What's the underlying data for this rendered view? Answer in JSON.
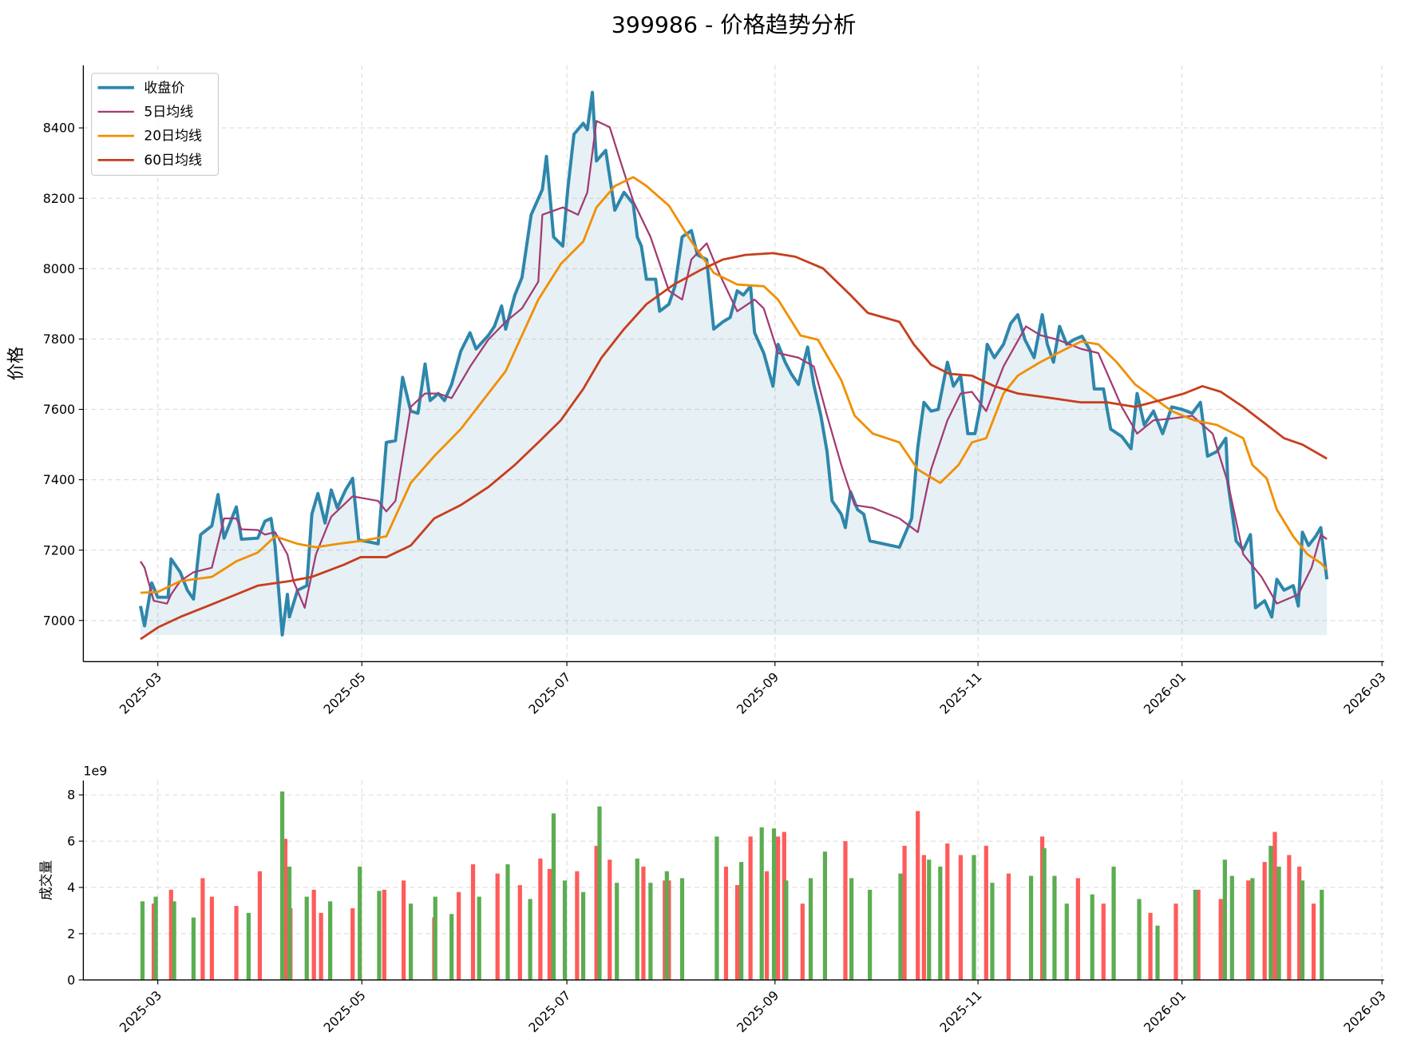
{
  "chart_data": [
    {
      "type": "line",
      "title": "399986 - 价格趋势分析",
      "ylabel": "价格",
      "xlim": [
        2.27,
        15.02
      ],
      "ylim": [
        6883,
        8578
      ],
      "xticks": [
        {
          "value": 3,
          "label": "2025-03"
        },
        {
          "value": 5,
          "label": "2025-05"
        },
        {
          "value": 7.01,
          "label": "2025-07"
        },
        {
          "value": 9.05,
          "label": "2025-09"
        },
        {
          "value": 11.04,
          "label": "2025-11"
        },
        {
          "value": 13.04,
          "label": "2026-01"
        },
        {
          "value": 15,
          "label": "2026-03"
        }
      ],
      "yticks": [
        7000,
        7200,
        7400,
        7600,
        7800,
        8000,
        8200,
        8400
      ],
      "grid": true,
      "legend": "upper left",
      "series": [
        {
          "name": "收盘价",
          "color": "#2e86ab",
          "width": 3.5,
          "fill": true,
          "x": [
            2.83,
            2.87,
            2.94,
            3.0,
            3.1,
            3.13,
            3.22,
            3.29,
            3.35,
            3.42,
            3.53,
            3.59,
            3.65,
            3.77,
            3.82,
            3.98,
            4.05,
            4.11,
            4.15,
            4.22,
            4.27,
            4.29,
            4.37,
            4.46,
            4.51,
            4.57,
            4.64,
            4.7,
            4.76,
            4.84,
            4.91,
            4.97,
            5.16,
            5.24,
            5.33,
            5.4,
            5.48,
            5.55,
            5.62,
            5.67,
            5.75,
            5.81,
            5.88,
            5.97,
            6.06,
            6.12,
            6.24,
            6.3,
            6.37,
            6.41,
            6.5,
            6.57,
            6.66,
            6.77,
            6.81,
            6.88,
            6.97,
            7.02,
            7.08,
            7.17,
            7.21,
            7.26,
            7.3,
            7.39,
            7.48,
            7.57,
            7.66,
            7.7,
            7.74,
            7.79,
            7.88,
            7.92,
            8.01,
            8.07,
            8.14,
            8.23,
            8.29,
            8.38,
            8.45,
            8.54,
            8.61,
            8.68,
            8.74,
            8.81,
            8.85,
            8.94,
            9.03,
            9.08,
            9.15,
            9.21,
            9.28,
            9.37,
            9.43,
            9.5,
            9.56,
            9.61,
            9.7,
            9.74,
            9.79,
            9.86,
            9.92,
            9.98,
            10.27,
            10.39,
            10.45,
            10.51,
            10.58,
            10.65,
            10.74,
            10.8,
            10.87,
            10.94,
            11.01,
            11.07,
            11.13,
            11.2,
            11.29,
            11.36,
            11.43,
            11.5,
            11.59,
            11.67,
            11.72,
            11.78,
            11.84,
            11.91,
            11.98,
            12.06,
            12.14,
            12.18,
            12.27,
            12.34,
            12.45,
            12.54,
            12.6,
            12.67,
            12.76,
            12.85,
            12.94,
            13.04,
            13.14,
            13.22,
            13.29,
            13.38,
            13.47,
            13.49,
            13.57,
            13.64,
            13.71,
            13.76,
            13.85,
            13.92,
            13.97,
            14.04,
            14.13,
            14.18,
            14.22,
            14.28,
            14.35,
            14.4,
            14.46
          ],
          "values": [
            7041,
            6985,
            7107,
            7066,
            7066,
            7175,
            7137,
            7086,
            7061,
            7244,
            7269,
            7358,
            7234,
            7323,
            7231,
            7234,
            7282,
            7290,
            7213,
            6959,
            7074,
            7010,
            7086,
            7099,
            7302,
            7361,
            7277,
            7371,
            7320,
            7371,
            7404,
            7229,
            7218,
            7506,
            7511,
            7691,
            7595,
            7589,
            7729,
            7625,
            7645,
            7625,
            7671,
            7765,
            7818,
            7772,
            7810,
            7836,
            7894,
            7828,
            7925,
            7975,
            8153,
            8225,
            8319,
            8090,
            8064,
            8230,
            8382,
            8413,
            8395,
            8501,
            8306,
            8336,
            8166,
            8217,
            8184,
            8090,
            8064,
            7970,
            7970,
            7879,
            7899,
            7950,
            8090,
            8108,
            8039,
            8026,
            7828,
            7849,
            7861,
            7937,
            7925,
            7950,
            7818,
            7760,
            7666,
            7785,
            7734,
            7701,
            7671,
            7777,
            7671,
            7582,
            7480,
            7340,
            7302,
            7264,
            7366,
            7315,
            7302,
            7226,
            7208,
            7290,
            7493,
            7620,
            7595,
            7600,
            7734,
            7666,
            7696,
            7531,
            7531,
            7620,
            7785,
            7747,
            7785,
            7844,
            7869,
            7798,
            7747,
            7869,
            7785,
            7734,
            7836,
            7785,
            7798,
            7808,
            7767,
            7658,
            7658,
            7544,
            7523,
            7488,
            7645,
            7556,
            7595,
            7531,
            7607,
            7600,
            7589,
            7620,
            7467,
            7480,
            7518,
            7391,
            7226,
            7201,
            7244,
            7036,
            7056,
            7010,
            7117,
            7086,
            7099,
            7041,
            7251,
            7213,
            7239,
            7264,
            7117
          ]
        },
        {
          "name": "5日均线",
          "color": "#a23b72",
          "width": 2,
          "x": [
            2.83,
            2.87,
            2.96,
            3.09,
            3.13,
            3.22,
            3.35,
            3.53,
            3.65,
            3.77,
            3.82,
            3.98,
            4.05,
            4.15,
            4.27,
            4.33,
            4.44,
            4.55,
            4.7,
            4.91,
            5.16,
            5.24,
            5.33,
            5.48,
            5.62,
            5.75,
            5.88,
            6.06,
            6.24,
            6.41,
            6.57,
            6.73,
            6.77,
            6.97,
            7.12,
            7.21,
            7.3,
            7.43,
            7.52,
            7.66,
            7.83,
            8.01,
            8.14,
            8.23,
            8.38,
            8.5,
            8.68,
            8.85,
            8.94,
            9.08,
            9.28,
            9.43,
            9.56,
            9.7,
            9.83,
            10.01,
            10.27,
            10.45,
            10.58,
            10.74,
            10.87,
            10.98,
            11.12,
            11.29,
            11.51,
            11.65,
            11.82,
            12.05,
            12.22,
            12.45,
            12.6,
            12.76,
            12.94,
            13.14,
            13.34,
            13.49,
            13.64,
            13.82,
            13.97,
            14.18,
            14.31,
            14.4,
            14.46
          ],
          "values": [
            7168,
            7150,
            7056,
            7048,
            7074,
            7112,
            7137,
            7150,
            7290,
            7290,
            7259,
            7257,
            7244,
            7251,
            7188,
            7112,
            7036,
            7188,
            7295,
            7353,
            7340,
            7310,
            7340,
            7607,
            7645,
            7645,
            7632,
            7721,
            7798,
            7849,
            7887,
            7963,
            8153,
            8174,
            8153,
            8217,
            8420,
            8402,
            8319,
            8192,
            8090,
            7937,
            7912,
            8026,
            8072,
            7988,
            7879,
            7912,
            7887,
            7760,
            7747,
            7722,
            7582,
            7442,
            7328,
            7320,
            7290,
            7251,
            7429,
            7569,
            7645,
            7650,
            7595,
            7722,
            7836,
            7811,
            7798,
            7772,
            7760,
            7607,
            7531,
            7569,
            7574,
            7582,
            7531,
            7391,
            7188,
            7124,
            7048,
            7074,
            7150,
            7244,
            7231
          ]
        },
        {
          "name": "20日均线",
          "color": "#f18f01",
          "width": 2.5,
          "x": [
            2.83,
            3.0,
            3.22,
            3.53,
            3.77,
            3.98,
            4.15,
            4.37,
            4.55,
            4.77,
            4.99,
            5.24,
            5.48,
            5.71,
            5.97,
            6.24,
            6.41,
            6.73,
            6.95,
            7.17,
            7.3,
            7.48,
            7.66,
            7.79,
            8.01,
            8.23,
            8.45,
            8.68,
            8.94,
            9.08,
            9.3,
            9.47,
            9.7,
            9.83,
            10.01,
            10.27,
            10.45,
            10.67,
            10.85,
            10.98,
            11.12,
            11.29,
            11.43,
            11.65,
            11.87,
            12.05,
            12.22,
            12.4,
            12.58,
            12.76,
            12.94,
            13.16,
            13.38,
            13.64,
            13.73,
            13.87,
            13.97,
            14.13,
            14.27,
            14.4,
            14.46
          ],
          "values": [
            7079,
            7081,
            7112,
            7124,
            7168,
            7193,
            7239,
            7218,
            7208,
            7218,
            7226,
            7239,
            7391,
            7467,
            7544,
            7645,
            7709,
            7912,
            8013,
            8077,
            8174,
            8235,
            8260,
            8235,
            8179,
            8077,
            7988,
            7955,
            7950,
            7912,
            7810,
            7798,
            7683,
            7582,
            7531,
            7506,
            7429,
            7391,
            7442,
            7506,
            7518,
            7645,
            7696,
            7734,
            7767,
            7793,
            7785,
            7734,
            7671,
            7633,
            7595,
            7569,
            7556,
            7518,
            7442,
            7404,
            7315,
            7239,
            7188,
            7163,
            7145
          ]
        },
        {
          "name": "60日均线",
          "color": "#c73e1d",
          "width": 2.5,
          "x": [
            2.83,
            3.0,
            3.22,
            3.53,
            3.77,
            3.98,
            4.29,
            4.51,
            4.82,
            4.99,
            5.24,
            5.48,
            5.71,
            5.97,
            6.24,
            6.5,
            6.73,
            6.95,
            7.17,
            7.35,
            7.57,
            7.79,
            8.06,
            8.32,
            8.54,
            8.76,
            9.03,
            9.25,
            9.52,
            9.79,
            9.96,
            10.27,
            10.41,
            10.58,
            10.76,
            10.98,
            11.2,
            11.43,
            11.74,
            12.05,
            12.31,
            12.58,
            12.84,
            13.06,
            13.24,
            13.42,
            13.64,
            13.87,
            14.04,
            14.22,
            14.46
          ],
          "values": [
            6947,
            6980,
            7010,
            7046,
            7074,
            7099,
            7112,
            7124,
            7158,
            7180,
            7180,
            7213,
            7290,
            7328,
            7379,
            7442,
            7506,
            7569,
            7658,
            7747,
            7828,
            7899,
            7955,
            7996,
            8026,
            8039,
            8044,
            8034,
            8001,
            7925,
            7874,
            7849,
            7785,
            7727,
            7701,
            7696,
            7666,
            7645,
            7633,
            7620,
            7620,
            7607,
            7627,
            7645,
            7666,
            7650,
            7607,
            7556,
            7518,
            7500,
            7460
          ]
        }
      ]
    },
    {
      "type": "bar",
      "ylabel": "成交量",
      "offset_label": "1e9",
      "xlim": [
        2.27,
        15.02
      ],
      "ylim": [
        0,
        8.62
      ],
      "xticks": [
        {
          "value": 3,
          "label": "2025-03"
        },
        {
          "value": 5,
          "label": "2025-05"
        },
        {
          "value": 7.01,
          "label": "2025-07"
        },
        {
          "value": 9.05,
          "label": "2025-09"
        },
        {
          "value": 11.04,
          "label": "2025-11"
        },
        {
          "value": 13.04,
          "label": "2026-01"
        },
        {
          "value": 15,
          "label": "2026-03"
        }
      ],
      "yticks": [
        0,
        2,
        4,
        6,
        8
      ],
      "grid": true,
      "series": [
        {
          "color": "#ff5b5b",
          "x": [
            2.96,
            3.13,
            3.44,
            3.53,
            3.77,
            4.0,
            4.25,
            4.3,
            4.53,
            4.6,
            4.91,
            5.22,
            5.41,
            5.71,
            5.95,
            6.09,
            6.33,
            6.55,
            6.75,
            6.84,
            7.11,
            7.3,
            7.43,
            7.76,
            7.97,
            8.01,
            8.57,
            8.68,
            8.81,
            8.97,
            9.08,
            9.14,
            9.32,
            9.74,
            10.32,
            10.45,
            10.51,
            10.74,
            10.87,
            11.12,
            11.34,
            11.67,
            12.02,
            12.27,
            12.73,
            12.98,
            13.2,
            13.42,
            13.69,
            13.85,
            13.95,
            14.09,
            14.19,
            14.33
          ],
          "values": [
            3.3,
            3.9,
            4.4,
            3.6,
            3.2,
            4.7,
            6.1,
            3.1,
            3.9,
            2.9,
            3.1,
            3.9,
            4.3,
            2.7,
            3.8,
            5.0,
            4.6,
            4.1,
            5.25,
            4.8,
            4.7,
            5.8,
            5.2,
            4.9,
            4.3,
            4.3,
            4.9,
            4.1,
            6.2,
            4.7,
            6.2,
            6.4,
            3.3,
            6.0,
            5.8,
            7.3,
            5.4,
            5.9,
            5.4,
            5.8,
            4.6,
            6.2,
            4.4,
            3.3,
            2.9,
            3.3,
            3.9,
            3.5,
            4.3,
            5.1,
            6.4,
            5.4,
            4.9,
            3.3
          ]
        },
        {
          "color": "#5cad52",
          "x": [
            2.85,
            2.98,
            3.16,
            3.35,
            3.89,
            4.22,
            4.29,
            4.46,
            4.69,
            4.98,
            5.17,
            5.48,
            5.72,
            5.88,
            6.15,
            6.43,
            6.65,
            6.88,
            6.99,
            7.17,
            7.33,
            7.5,
            7.7,
            7.83,
            7.99,
            8.14,
            8.48,
            8.72,
            8.92,
            9.04,
            9.16,
            9.4,
            9.54,
            9.8,
            9.98,
            10.28,
            10.56,
            10.67,
            11.0,
            11.18,
            11.56,
            11.69,
            11.79,
            11.91,
            12.16,
            12.37,
            12.62,
            12.8,
            13.17,
            13.46,
            13.53,
            13.73,
            13.91,
            13.99,
            14.22,
            14.41
          ],
          "values": [
            3.4,
            3.6,
            3.4,
            2.7,
            2.9,
            8.15,
            4.9,
            3.6,
            3.4,
            4.9,
            3.85,
            3.3,
            3.6,
            2.85,
            3.6,
            5.0,
            3.5,
            7.2,
            4.3,
            3.8,
            7.5,
            4.2,
            5.25,
            4.2,
            4.7,
            4.4,
            6.2,
            5.1,
            6.6,
            6.55,
            4.3,
            4.4,
            5.55,
            4.4,
            3.9,
            4.6,
            5.2,
            4.9,
            5.4,
            4.2,
            4.5,
            5.7,
            4.5,
            3.3,
            3.7,
            4.9,
            3.5,
            2.35,
            3.9,
            5.2,
            4.5,
            4.4,
            5.8,
            4.9,
            4.3,
            3.9
          ]
        }
      ]
    }
  ]
}
